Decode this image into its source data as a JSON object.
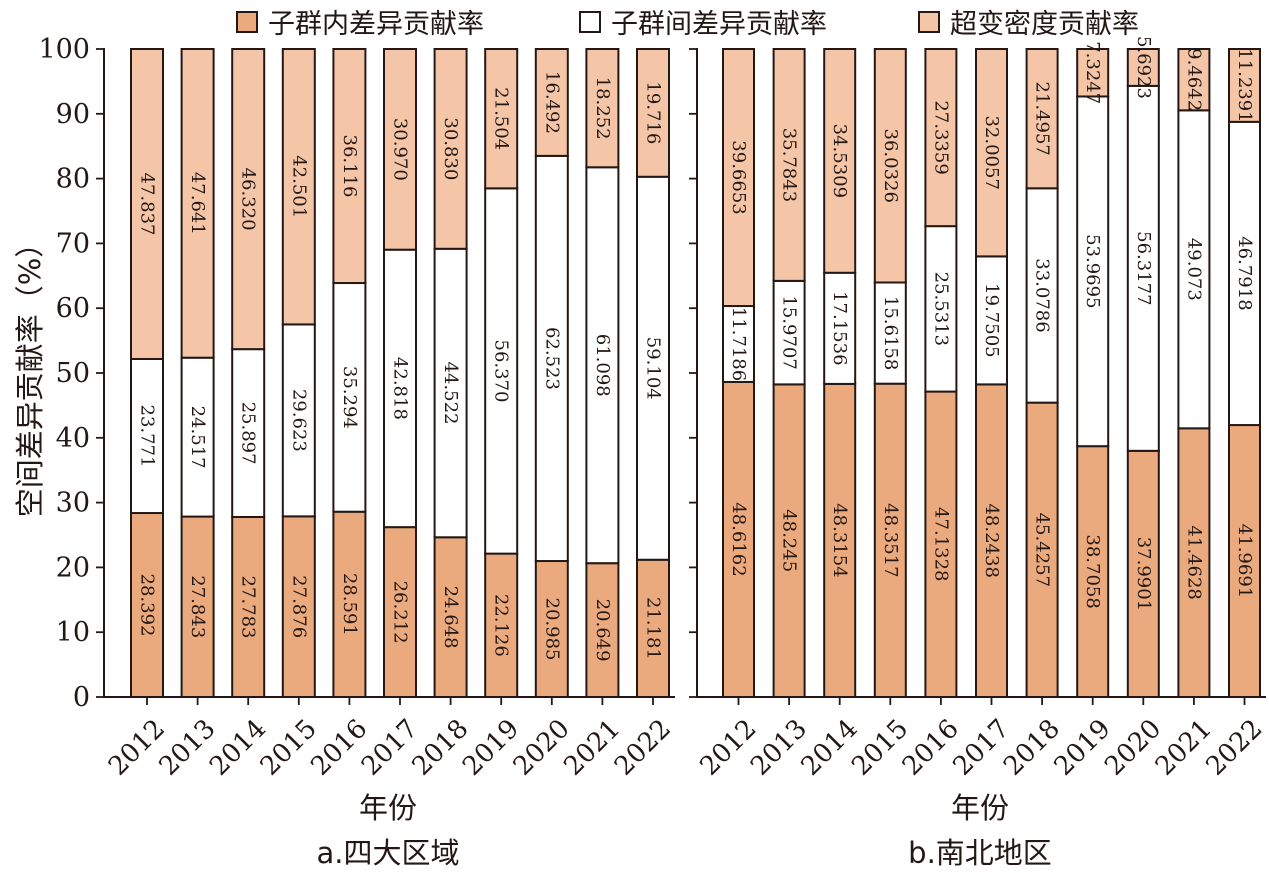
{
  "legend": {
    "within": "子群内差异贡献率",
    "between": "子群间差异贡献率",
    "transvariation": "超变密度贡献率"
  },
  "colors": {
    "within": "#EBAA7E",
    "between": "#FFFFFF",
    "transvariation": "#F4C6A7",
    "stroke": "#231815"
  },
  "chart_data": [
    {
      "type": "bar",
      "stacked": true,
      "title": "a.四大区域",
      "xlabel": "年份",
      "ylabel": "空间差异贡献率（%）",
      "ylim": [
        0,
        100
      ],
      "yticks": [
        "0",
        "10",
        "20",
        "30",
        "40",
        "50",
        "60",
        "70",
        "80",
        "90",
        "100"
      ],
      "categories": [
        "2012",
        "2013",
        "2014",
        "2015",
        "2016",
        "2017",
        "2018",
        "2019",
        "2020",
        "2021",
        "2022"
      ],
      "series": [
        {
          "name": "子群内差异贡献率",
          "key": "within",
          "values": [
            28.392,
            27.843,
            27.783,
            27.876,
            28.591,
            26.212,
            24.648,
            22.126,
            20.985,
            20.649,
            21.181
          ],
          "labels": [
            "28.392",
            "27.843",
            "27.783",
            "27.876",
            "28.591",
            "26.212",
            "24.648",
            "22.126",
            "20.985",
            "20.649",
            "21.181"
          ]
        },
        {
          "name": "子群间差异贡献率",
          "key": "between",
          "values": [
            23.771,
            24.517,
            25.897,
            29.623,
            35.294,
            42.818,
            44.522,
            56.37,
            62.523,
            61.098,
            59.104
          ],
          "labels": [
            "23.771",
            "24.517",
            "25.897",
            "29.623",
            "35.294",
            "42.818",
            "44.522",
            "56.370",
            "62.523",
            "61.098",
            "59.104"
          ]
        },
        {
          "name": "超变密度贡献率",
          "key": "transvariation",
          "values": [
            47.837,
            47.641,
            46.32,
            42.501,
            36.116,
            30.97,
            30.83,
            21.504,
            16.492,
            18.252,
            19.716
          ],
          "labels": [
            "47.837",
            "47.641",
            "46.320",
            "42.501",
            "36.116",
            "30.970",
            "30.830",
            "21.504",
            "16.492",
            "18.252",
            "19.716"
          ]
        }
      ]
    },
    {
      "type": "bar",
      "stacked": true,
      "title": "b.南北地区",
      "xlabel": "年份",
      "ylabel": "",
      "ylim": [
        0,
        100
      ],
      "categories": [
        "2012",
        "2013",
        "2014",
        "2015",
        "2016",
        "2017",
        "2018",
        "2019",
        "2020",
        "2021",
        "2022"
      ],
      "series": [
        {
          "name": "子群内差异贡献率",
          "key": "within",
          "values": [
            48.6162,
            48.245,
            48.3154,
            48.3517,
            47.1328,
            48.2438,
            45.4257,
            38.7058,
            37.9901,
            41.4628,
            41.9691
          ],
          "labels": [
            "48.6162",
            "48.245",
            "48.3154",
            "48.3517",
            "47.1328",
            "48.2438",
            "45.4257",
            "38.7058",
            "37.9901",
            "41.4628",
            "41.9691"
          ]
        },
        {
          "name": "子群间差异贡献率",
          "key": "between",
          "values": [
            11.7186,
            15.9707,
            17.1536,
            15.6158,
            25.5313,
            19.7505,
            33.0786,
            53.9695,
            56.3177,
            49.073,
            46.7918
          ],
          "labels": [
            "11.7186",
            "15.9707",
            "17.1536",
            "15.6158",
            "25.5313",
            "19.7505",
            "33.0786",
            "53.9695",
            "56.3177",
            "49.073",
            "46.7918"
          ]
        },
        {
          "name": "超变密度贡献率",
          "key": "transvariation",
          "values": [
            39.6653,
            35.7843,
            34.5309,
            36.0326,
            27.3359,
            32.0057,
            21.4957,
            7.3247,
            5.6923,
            9.4642,
            11.2391
          ],
          "labels": [
            "39.6653",
            "35.7843",
            "34.5309",
            "36.0326",
            "27.3359",
            "32.0057",
            "21.4957",
            "7.3247",
            "5.6923",
            "9.4642",
            "11.2391"
          ]
        }
      ]
    }
  ]
}
